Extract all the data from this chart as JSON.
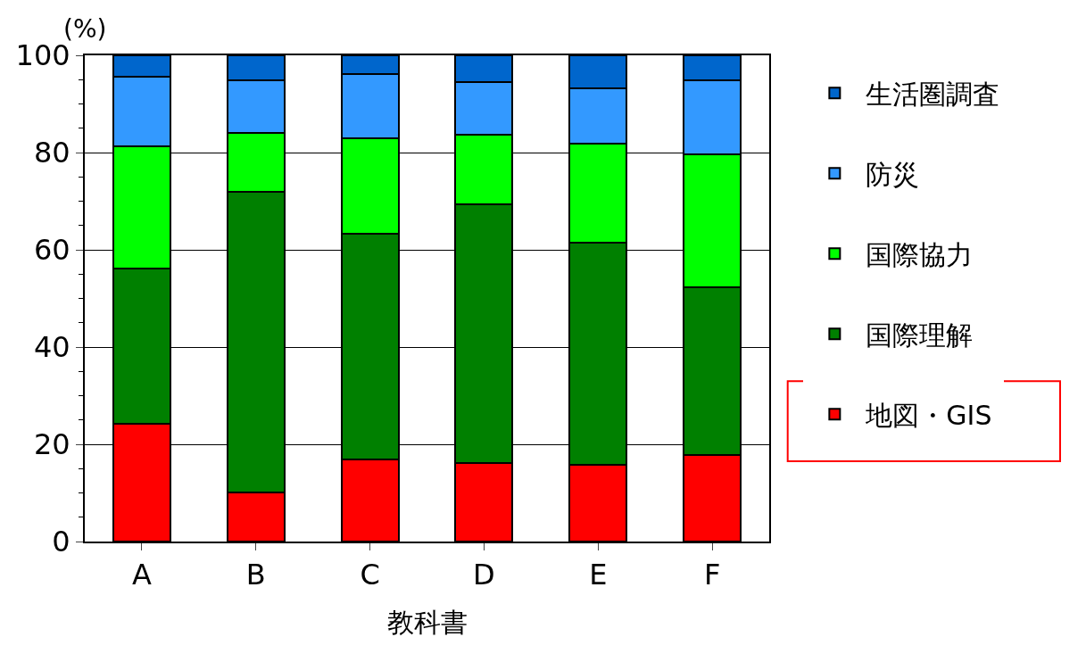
{
  "chart_data": {
    "type": "bar",
    "stacked": true,
    "xlabel": "教科書",
    "ylabel": "(%)",
    "categories": [
      "A",
      "B",
      "C",
      "D",
      "E",
      "F"
    ],
    "series": [
      {
        "name": "地図・GIS",
        "color": "#ff0000",
        "values": [
          24.2,
          10.1,
          16.9,
          16.1,
          15.8,
          17.8
        ]
      },
      {
        "name": "国際理解",
        "color": "#008000",
        "values": [
          31.9,
          61.8,
          46.4,
          53.3,
          45.7,
          34.5
        ]
      },
      {
        "name": "国際協力",
        "color": "#00ff00",
        "values": [
          25.2,
          12.1,
          19.6,
          14.3,
          20.3,
          27.3
        ]
      },
      {
        "name": "防災",
        "color": "#3399ff",
        "values": [
          14.3,
          10.9,
          13.2,
          10.8,
          11.4,
          15.3
        ]
      },
      {
        "name": "生活圏調査",
        "color": "#0066cc",
        "values": [
          4.4,
          5.1,
          3.9,
          5.5,
          6.8,
          5.1
        ]
      }
    ],
    "ylim": [
      0,
      100
    ],
    "yticks": [
      0,
      20,
      40,
      60,
      80,
      100
    ],
    "grid": "y",
    "legend": "right"
  }
}
